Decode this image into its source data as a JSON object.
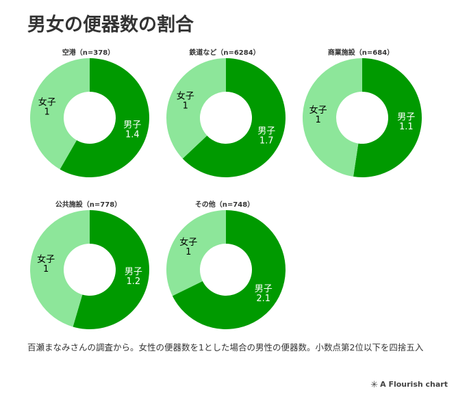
{
  "title": "男女の便器数の割合",
  "note": "百瀬まなみさんの調査から。女性の便器数を1とした場合の男性の便器数。小数点第2位以下を四捨五入",
  "credit": {
    "icon": "asterisk-icon",
    "text": "A Flourish chart"
  },
  "colors": {
    "male": "#009a00",
    "female": "#8de69a",
    "male_text": "#ffffff",
    "female_text": "#000000"
  },
  "chart_data": [
    {
      "type": "pie",
      "title": "空港（n=378）",
      "categories": [
        "男子",
        "女子"
      ],
      "values": [
        1.4,
        1
      ]
    },
    {
      "type": "pie",
      "title": "鉄道など（n=6284）",
      "categories": [
        "男子",
        "女子"
      ],
      "values": [
        1.7,
        1
      ]
    },
    {
      "type": "pie",
      "title": "商業施設（n=684）",
      "categories": [
        "男子",
        "女子"
      ],
      "values": [
        1.1,
        1
      ]
    },
    {
      "type": "pie",
      "title": "公共施設（n=778）",
      "categories": [
        "男子",
        "女子"
      ],
      "values": [
        1.2,
        1
      ]
    },
    {
      "type": "pie",
      "title": "その他（n=748）",
      "categories": [
        "男子",
        "女子"
      ],
      "values": [
        2.1,
        1
      ]
    }
  ]
}
